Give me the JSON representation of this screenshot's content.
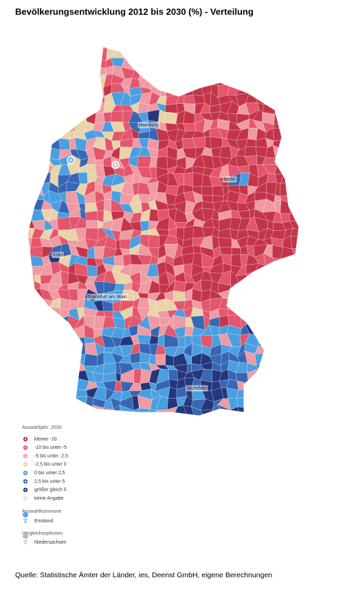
{
  "title": "Bevölkerungsentwicklung 2012 bis 2030 (%) - Verteilung",
  "map": {
    "city_labels": [
      "Hamburg",
      "Berlin",
      "Köln",
      "Frankfurt am Main",
      "München"
    ]
  },
  "legend": {
    "heading": "Auswahljahr: 2030",
    "items": [
      {
        "label": "kleiner -10",
        "color": "#c43549"
      },
      {
        "label": "-10 bis unter -5",
        "color": "#e4566c"
      },
      {
        "label": "-5 bis unter -2,5",
        "color": "#f09aa3"
      },
      {
        "label": "-2,5 bis unter 0",
        "color": "#e9d3a9"
      },
      {
        "label": "0 bis unter 2,5",
        "color": "#4b9fe1"
      },
      {
        "label": "2,5 bis unter 5",
        "color": "#3767b4"
      },
      {
        "label": "größer gleich 5",
        "color": "#24367c"
      },
      {
        "label": "keine Angabe",
        "color": "#e2e2e2"
      }
    ]
  },
  "selection": {
    "heading": "Auswahlkommune",
    "item": "Emsland"
  },
  "comparison": {
    "heading": "Vergleichsoptionen",
    "item": "Niedersachsen"
  },
  "source": "Quelle: Statistische Ämter der Länder, ies, Deenst GmbH, eigene Berechnungen"
}
